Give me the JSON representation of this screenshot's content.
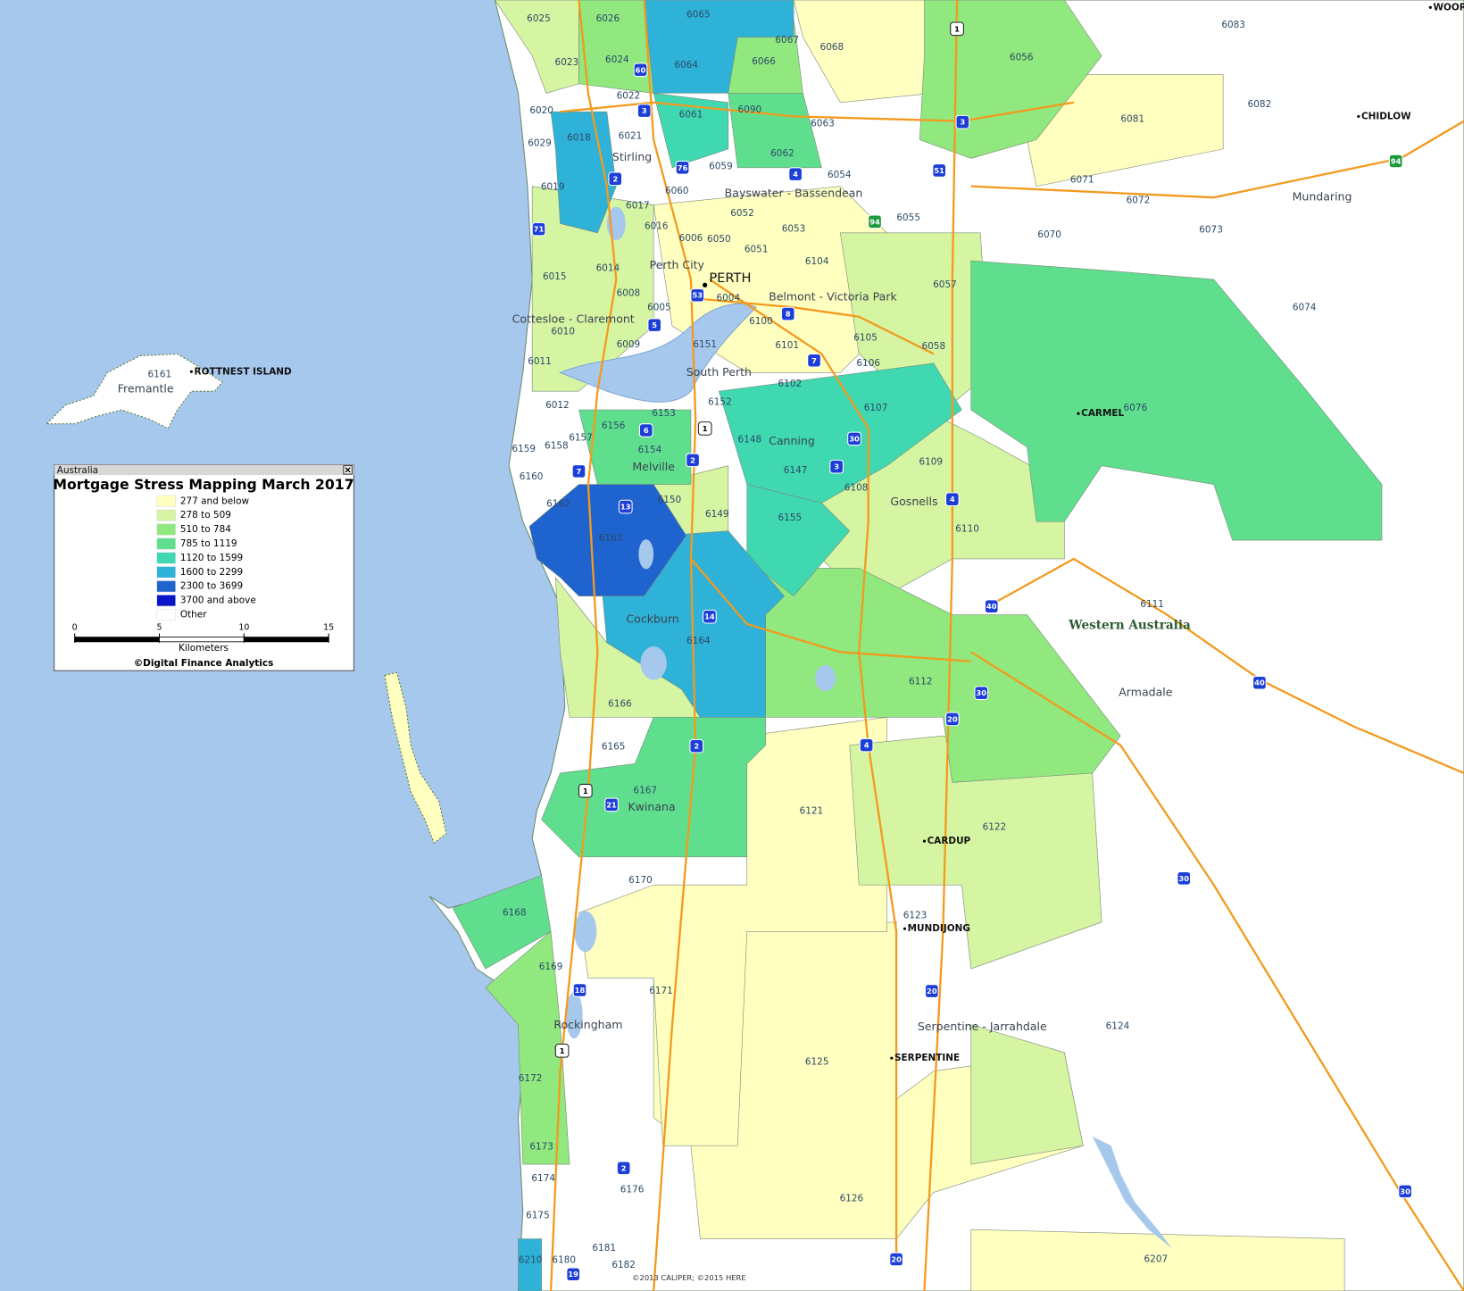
{
  "legend": {
    "window_title": "Australia",
    "title": "Mortgage Stress Mapping March 2017",
    "items": [
      {
        "label": "277 and below",
        "color": "#ffffc0"
      },
      {
        "label": "278 to 509",
        "color": "#d6f5a2"
      },
      {
        "label": "510 to 784",
        "color": "#90e87e"
      },
      {
        "label": "785 to 1119",
        "color": "#5fdf8e"
      },
      {
        "label": "1120 to 1599",
        "color": "#3fd8b0"
      },
      {
        "label": "1600 to 2299",
        "color": "#2eb2d8"
      },
      {
        "label": "2300 to 3699",
        "color": "#1f63cf"
      },
      {
        "label": "3700 and above",
        "color": "#0a14c8"
      },
      {
        "label": "Other",
        "color": "#ffffff"
      }
    ],
    "scale": {
      "ticks": [
        0,
        5,
        10,
        15
      ],
      "max": 15,
      "unit": "Kilometers"
    },
    "credit": "©Digital Finance Analytics"
  },
  "map": {
    "region_label": "Western Australia",
    "attribution": "©2013 CALIPER; ©2015 HERE",
    "postcodes": [
      "6025",
      "6026",
      "6065",
      "6067",
      "6068",
      "6083",
      "6023",
      "6024",
      "6064",
      "6066",
      "6056",
      "6082",
      "6020",
      "6022",
      "6061",
      "6090",
      "6063",
      "6081",
      "6018",
      "6021",
      "6029",
      "6062",
      "6059",
      "6054",
      "6071",
      "6019",
      "6060",
      "6017",
      "6052",
      "6055",
      "6072",
      "6016",
      "6053",
      "6006",
      "6050",
      "6070",
      "6073",
      "6051",
      "6104",
      "6015",
      "6014",
      "6057",
      "6008",
      "6005",
      "6004",
      "6074",
      "6010",
      "6100",
      "6009",
      "6151",
      "6105",
      "6101",
      "6058",
      "6011",
      "6106",
      "6102",
      "6012",
      "6152",
      "6107",
      "6076",
      "6153",
      "6156",
      "6148",
      "6157",
      "6154",
      "6159",
      "6158",
      "6109",
      "6160",
      "6147",
      "6108",
      "6162",
      "6150",
      "6149",
      "6155",
      "6110",
      "6163",
      "6111",
      "6164",
      "6112",
      "6166",
      "6165",
      "6167",
      "6121",
      "6122",
      "6170",
      "6168",
      "6123",
      "6169",
      "6171",
      "6125",
      "6124",
      "6172",
      "6173",
      "6174",
      "6176",
      "6126",
      "6175",
      "6181",
      "6210",
      "6180",
      "6182",
      "6207",
      "6161"
    ],
    "places": [
      "Stirling",
      "Bayswater - Bassendean",
      "Perth City",
      "Belmont - Victoria Park",
      "Cottesloe - Claremont",
      "South Perth",
      "Canning",
      "Melville",
      "Gosnells",
      "Cockburn",
      "Kwinana",
      "Rockingham",
      "Serpentine - Jarrahdale",
      "Fremantle",
      "Mundaring",
      "Armadale"
    ],
    "capital": "PERTH",
    "towns": [
      "ROTTNEST ISLAND",
      "CHIDLOW",
      "CARMEL",
      "CARDUP",
      "MUNDIJONG",
      "SERPENTINE",
      "WOORO"
    ],
    "state_routes": {
      "color": "#1d3fd8",
      "labels": [
        "60",
        "3",
        "76",
        "2",
        "4",
        "51",
        "3",
        "71",
        "53",
        "5",
        "8",
        "7",
        "6",
        "2",
        "7",
        "13",
        "30",
        "3",
        "4",
        "40",
        "14",
        "40",
        "30",
        "20",
        "4",
        "2",
        "21",
        "30",
        "18",
        "20",
        "2",
        "30",
        "19",
        "20"
      ]
    },
    "national_routes": {
      "color": "#1a9a3a",
      "labels": [
        "94",
        "94"
      ]
    },
    "highway_1": {
      "color": "#ffffff",
      "labels": [
        "1",
        "1",
        "1",
        "1"
      ]
    }
  }
}
